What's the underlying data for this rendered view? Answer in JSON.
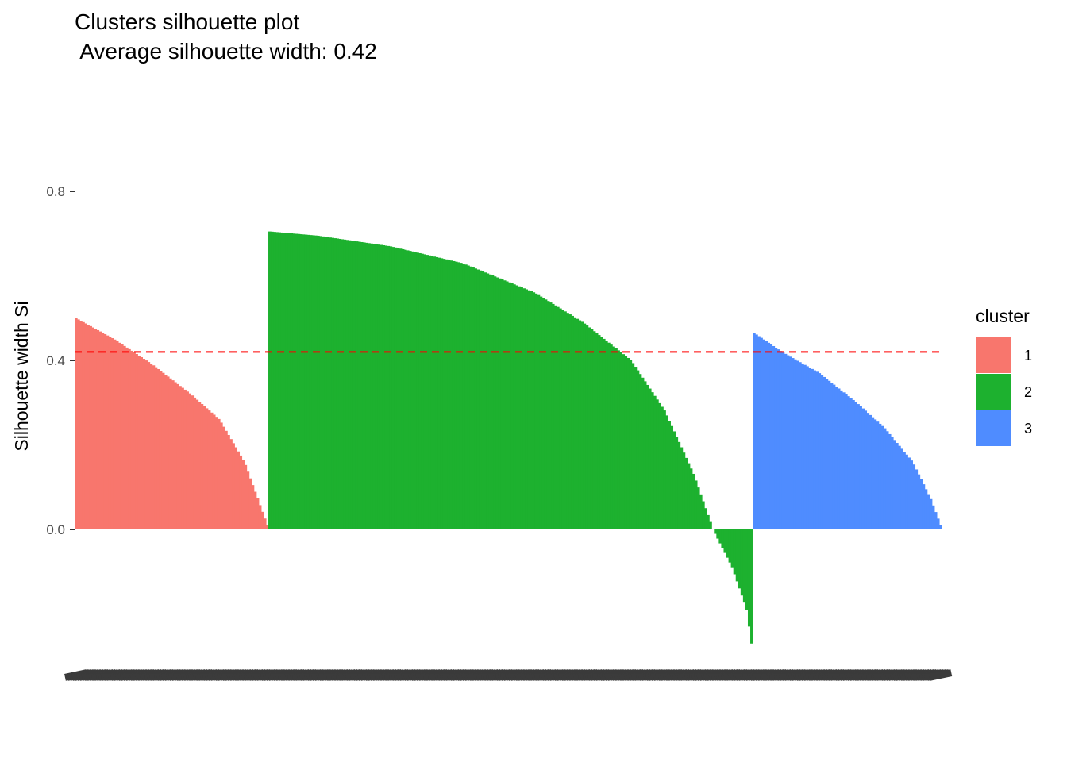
{
  "chart_data": {
    "type": "bar",
    "title": "Clusters silhouette plot",
    "subtitle": " Average silhouette width: 0.42",
    "xlabel": "",
    "ylabel": "Silhouette width Si",
    "ylim": [
      -0.28,
      0.95
    ],
    "yticks": [
      "0.0",
      "0.4",
      "0.8"
    ],
    "average_silhouette": 0.42,
    "average_line_color": "#ff0000",
    "legend": {
      "title": "cluster",
      "position": "right"
    },
    "grid": false,
    "series": [
      {
        "name": "1",
        "color": "#f8766d",
        "count": 80,
        "profile": [
          [
            0,
            0.5
          ],
          [
            0.2,
            0.45
          ],
          [
            0.4,
            0.39
          ],
          [
            0.6,
            0.32
          ],
          [
            0.75,
            0.26
          ],
          [
            0.88,
            0.16
          ],
          [
            1.0,
            0.01
          ]
        ]
      },
      {
        "name": "2",
        "color": "#1db12f",
        "count": 200,
        "profile": [
          [
            0,
            0.705
          ],
          [
            0.1,
            0.695
          ],
          [
            0.25,
            0.67
          ],
          [
            0.4,
            0.63
          ],
          [
            0.55,
            0.56
          ],
          [
            0.65,
            0.49
          ],
          [
            0.75,
            0.4
          ],
          [
            0.82,
            0.28
          ],
          [
            0.88,
            0.13
          ],
          [
            0.92,
            0.0
          ],
          [
            0.96,
            -0.09
          ],
          [
            0.99,
            -0.19
          ],
          [
            1.0,
            -0.27
          ]
        ]
      },
      {
        "name": "3",
        "color": "#4f8cff",
        "count": 78,
        "profile": [
          [
            0,
            0.465
          ],
          [
            0.15,
            0.42
          ],
          [
            0.35,
            0.37
          ],
          [
            0.55,
            0.3
          ],
          [
            0.7,
            0.24
          ],
          [
            0.85,
            0.16
          ],
          [
            0.95,
            0.07
          ],
          [
            1.0,
            0.01
          ]
        ]
      }
    ]
  }
}
